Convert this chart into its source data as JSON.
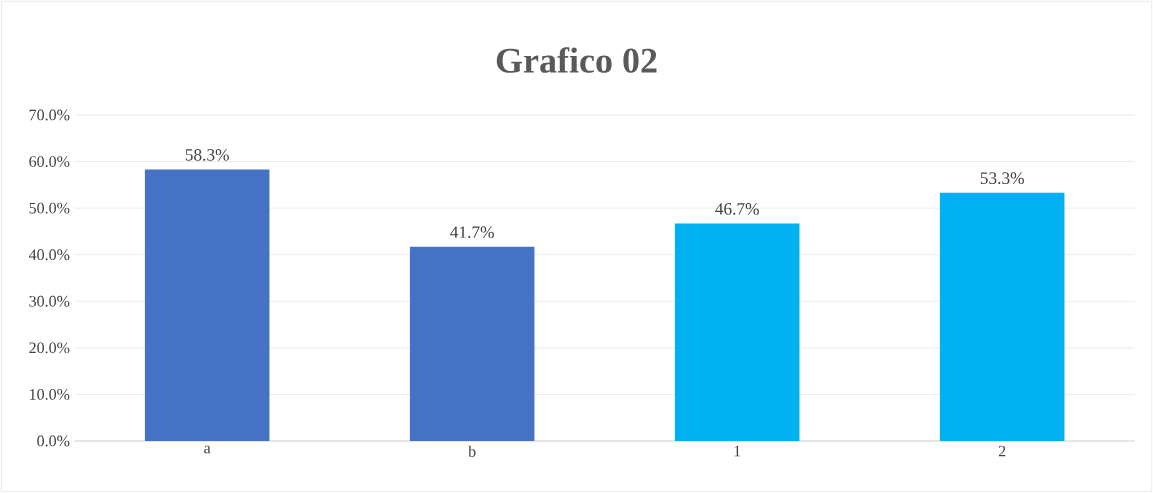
{
  "chart_data": {
    "type": "bar",
    "title": "Grafico 02",
    "categories": [
      "a",
      "b",
      "1",
      "2"
    ],
    "values": [
      58.3,
      41.7,
      46.7,
      53.3
    ],
    "colors": [
      "#4472c4",
      "#4472c4",
      "#00b0f0",
      "#00b0f0"
    ],
    "value_labels": [
      "58.3%",
      "41.7%",
      "46.7%",
      "53.3%"
    ],
    "ylim": [
      0,
      70
    ],
    "yticks": [
      {
        "value": 0,
        "label": "0.0%"
      },
      {
        "value": 10,
        "label": "10.0%"
      },
      {
        "value": 20,
        "label": "20.0%"
      },
      {
        "value": 30,
        "label": "30.0%"
      },
      {
        "value": 40,
        "label": "40.0%"
      },
      {
        "value": 50,
        "label": "50.0%"
      },
      {
        "value": 60,
        "label": "60.0%"
      },
      {
        "value": 70,
        "label": "70.0%"
      }
    ],
    "grid": "y"
  }
}
